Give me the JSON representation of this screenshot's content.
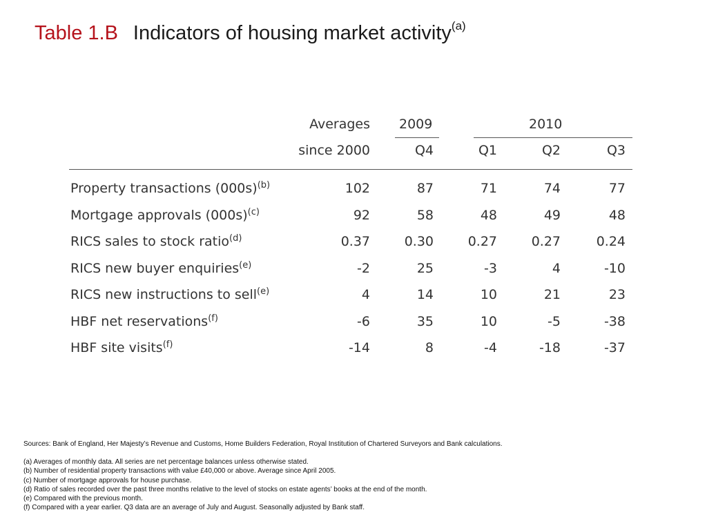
{
  "title": {
    "number": "Table 1.B",
    "text": "Indicators of housing market activity",
    "sup": "(a)"
  },
  "table": {
    "header": {
      "averages_line1": "Averages",
      "averages_line2": "since 2000",
      "year_2009": "2009",
      "year_2010": "2010",
      "q4": "Q4",
      "q1": "Q1",
      "q2": "Q2",
      "q3": "Q3"
    },
    "rows": [
      {
        "label": "Property transactions (000s)",
        "note": "(b)",
        "values": [
          "102",
          "87",
          "71",
          "74",
          "77"
        ]
      },
      {
        "label": "Mortgage approvals (000s)",
        "note": "(c)",
        "values": [
          "92",
          "58",
          "48",
          "49",
          "48"
        ]
      },
      {
        "label": "RICS sales to stock ratio",
        "note": "(d)",
        "values": [
          "0.37",
          "0.30",
          "0.27",
          "0.27",
          "0.24"
        ]
      },
      {
        "label": "RICS new buyer enquiries",
        "note": "(e)",
        "values": [
          "-2",
          "25",
          "-3",
          "4",
          "-10"
        ]
      },
      {
        "label": "RICS new instructions to sell",
        "note": "(e)",
        "values": [
          "4",
          "14",
          "10",
          "21",
          "23"
        ]
      },
      {
        "label": "HBF net reservations",
        "note": "(f)",
        "values": [
          "-6",
          "35",
          "10",
          "-5",
          "-38"
        ]
      },
      {
        "label": "HBF site visits",
        "note": "(f)",
        "values": [
          "-14",
          "8",
          "-4",
          "-18",
          "-37"
        ]
      }
    ]
  },
  "notes": {
    "sources": "Sources:  Bank of England, Her Majesty’s Revenue and Customs, Home Builders Federation, Royal Institution of Chartered Surveyors and Bank calculations.",
    "items": [
      "(a)   Averages of monthly data.  All series are net percentage balances unless otherwise stated.",
      "(b)   Number of residential property transactions with value £40,000 or above.  Average since April 2005.",
      "(c)   Number of mortgage approvals for house purchase.",
      "(d)  Ratio of sales recorded over the past three months relative to the level of stocks on estate agents’ books at the end of the month.",
      "(e)  Compared with the previous month.",
      "(f)   Compared with a year earlier.  Q3 data are an average of July and August.  Seasonally adjusted by Bank staff."
    ]
  }
}
